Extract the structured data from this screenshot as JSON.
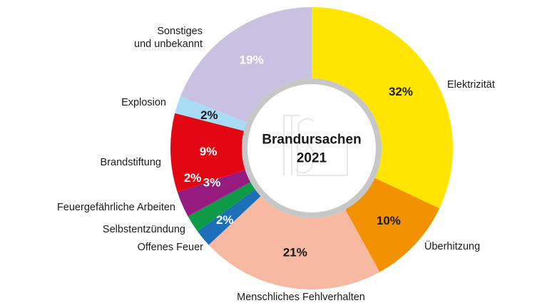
{
  "chart_data": {
    "type": "pie",
    "variant": "donut",
    "title": "Brandursachen",
    "subtitle": "2021",
    "unit": "%",
    "slices": [
      {
        "label": "Elektrizität",
        "value": 32,
        "display": "32%",
        "color": "#ffe500",
        "text_color": "#1a1a1a"
      },
      {
        "label": "Überhitzung",
        "value": 10,
        "display": "10%",
        "color": "#f39200",
        "text_color": "#1a1a1a"
      },
      {
        "label": "Menschliches Fehlverhalten",
        "value": 21,
        "display": "21%",
        "color": "#f7b9a1",
        "text_color": "#1a1a1a"
      },
      {
        "label": "Offenes Feuer",
        "value": 2,
        "display": "2%",
        "color": "#1d6fb8",
        "text_color": "#ffffff"
      },
      {
        "label": "Selbstentzündung",
        "value": 2,
        "display": "2%",
        "color": "#0f9a48",
        "text_color": "#ffffff"
      },
      {
        "label": "Feuergefährliche Arbeiten",
        "value": 3,
        "display": "3%",
        "color": "#951b81",
        "text_color": "#ffffff"
      },
      {
        "label": "Brandstiftung",
        "value": 9,
        "display": "9%",
        "color": "#e30613",
        "text_color": "#ffffff"
      },
      {
        "label": "Explosion",
        "value": 2,
        "display": "2%",
        "color": "#a8dcf5",
        "text_color": "#1a1a1a"
      },
      {
        "label": "Sonstiges und unbekannt",
        "value": 19,
        "display": "19%",
        "color": "#c9c1e2",
        "text_color": "#ffffff"
      }
    ],
    "start_angle": "12 o'clock",
    "direction": "clockwise",
    "legend": "none"
  }
}
